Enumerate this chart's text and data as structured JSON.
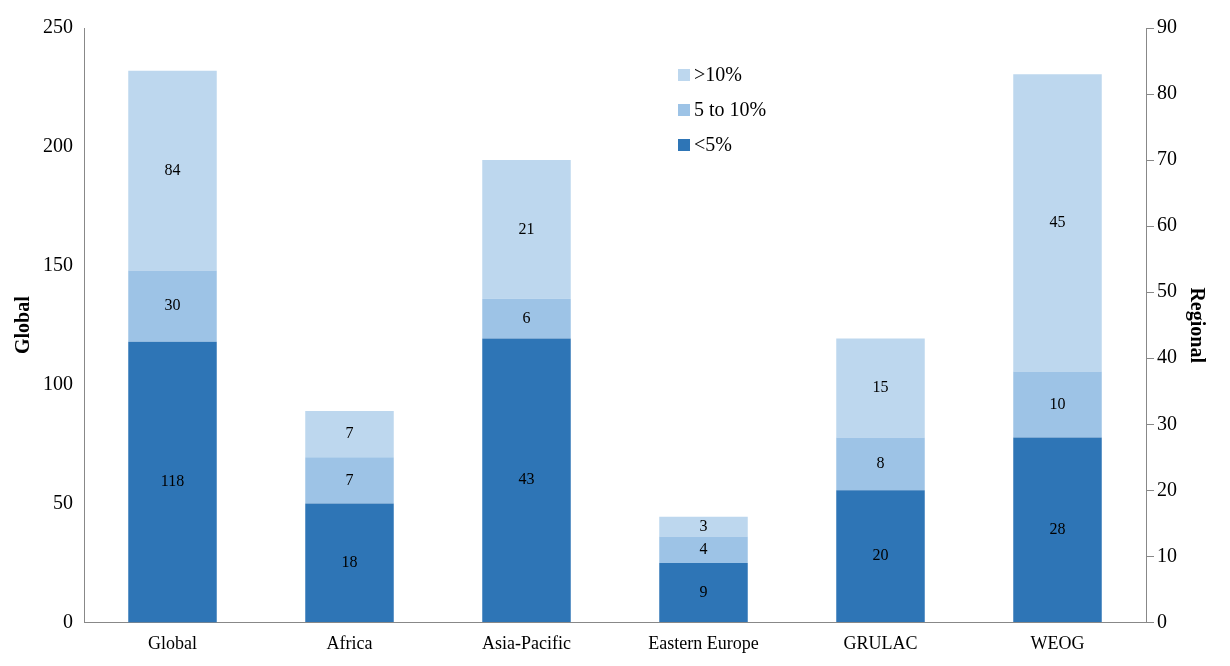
{
  "chart_data": {
    "type": "bar",
    "stacked": true,
    "categories": [
      "Global",
      "Africa",
      "Asia-Pacific",
      "Eastern Europe",
      "GRULAC",
      "WEOG"
    ],
    "ylabel": "Global",
    "y2label": "Regional",
    "ylim": [
      0,
      250
    ],
    "yticks": [
      0,
      50,
      100,
      150,
      200,
      250
    ],
    "y2lim": [
      0,
      90
    ],
    "y2ticks": [
      0,
      10,
      20,
      30,
      40,
      50,
      60,
      70,
      80,
      90
    ],
    "series": [
      {
        "color": "#2e75b6",
        "values": [
          118,
          null,
          null,
          null,
          null,
          null
        ]
      },
      {
        "color": "#9dc3e6",
        "values": [
          30,
          null,
          null,
          null,
          null,
          null
        ]
      },
      {
        "color": "#bdd7ee",
        "values": [
          84,
          null,
          null,
          null,
          null,
          null
        ]
      },
      {
        "name": "<5%",
        "color": "#2e75b6",
        "axis": "y2",
        "values": [
          null,
          18,
          43,
          9,
          20,
          28
        ]
      },
      {
        "name": "5 to 10%",
        "color": "#9dc3e6",
        "axis": "y2",
        "values": [
          null,
          7,
          6,
          4,
          8,
          10
        ]
      },
      {
        "name": ">10%",
        "color": "#bdd7ee",
        "axis": "y2",
        "values": [
          null,
          7,
          21,
          3,
          15,
          45
        ]
      }
    ],
    "data_labels": true,
    "legend": "top"
  }
}
